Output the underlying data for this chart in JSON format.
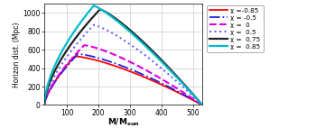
{
  "ylabel": "Horizon dist. (Mpc)",
  "xlim": [
    28,
    530
  ],
  "ylim": [
    0,
    1100
  ],
  "xticks": [
    100,
    200,
    300,
    400,
    500
  ],
  "yticks": [
    0,
    200,
    400,
    600,
    800,
    1000
  ],
  "series": [
    {
      "label": "χ =-0.85",
      "color": "#ff0000",
      "linestyle": "solid",
      "linewidth": 1.3,
      "peak_x": 125,
      "peak_y": 530,
      "rise_exp": 0.7,
      "fall_exp": 1.4
    },
    {
      "label": "χ = -0.5",
      "color": "#2222dd",
      "linestyle": "dashdot",
      "linewidth": 1.3,
      "peak_x": 135,
      "peak_y": 555,
      "rise_exp": 0.7,
      "fall_exp": 1.4
    },
    {
      "label": "χ =  0",
      "color": "#dd00dd",
      "linestyle": "dashed",
      "linewidth": 1.5,
      "peak_x": 155,
      "peak_y": 650,
      "rise_exp": 0.68,
      "fall_exp": 1.35
    },
    {
      "label": "χ =  0.5",
      "color": "#6666ff",
      "linestyle": "dotted",
      "linewidth": 1.5,
      "peak_x": 185,
      "peak_y": 870,
      "rise_exp": 0.65,
      "fall_exp": 1.3
    },
    {
      "label": "χ =  0.75",
      "color": "#222222",
      "linestyle": "solid",
      "linewidth": 1.6,
      "peak_x": 205,
      "peak_y": 1040,
      "rise_exp": 0.62,
      "fall_exp": 1.25
    },
    {
      "label": "χ =  0.85",
      "color": "#00bbcc",
      "linestyle": "solid",
      "linewidth": 1.6,
      "peak_x": 185,
      "peak_y": 1080,
      "rise_exp": 0.6,
      "fall_exp": 1.22
    }
  ],
  "background_color": "#ffffff",
  "grid_color": "#cccccc",
  "legend_labels": [
    "χ =-0.85",
    "χ = -0.5",
    "χ =  0",
    "χ =  0.5",
    "χ =  0.75",
    "χ =  0.85"
  ]
}
